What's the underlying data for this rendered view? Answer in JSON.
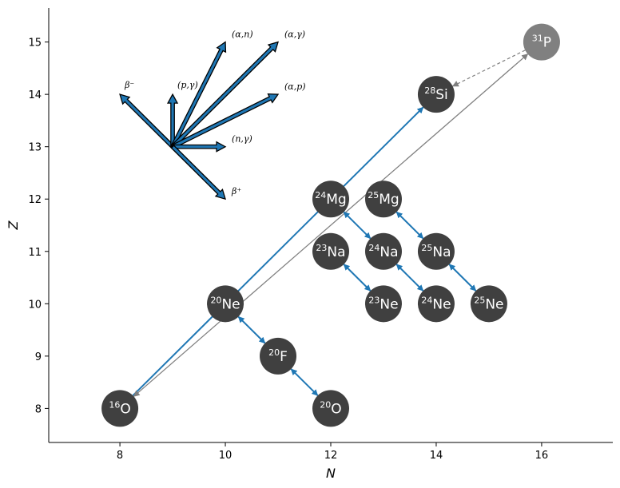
{
  "axes": {
    "xlabel": "N",
    "ylabel": "Z",
    "xlim": [
      6.65,
      17.35
    ],
    "ylim": [
      7.35,
      15.65
    ],
    "xticks": [
      "8",
      "10",
      "12",
      "14",
      "16"
    ],
    "yticks": [
      "8",
      "9",
      "10",
      "11",
      "12",
      "13",
      "14",
      "15"
    ]
  },
  "colors": {
    "node": "#404040",
    "node_unstable": "#808080",
    "transition": "#1f77b4",
    "gray_arrow": "#7f7f7f",
    "legend_arrow_fill": "#1f77b4"
  },
  "chart_data": {
    "type": "diagram",
    "nuclides": [
      {
        "id": "O16",
        "mass": "16",
        "symbol": "O",
        "n": 8,
        "z": 8,
        "style": "dark"
      },
      {
        "id": "Ne20",
        "mass": "20",
        "symbol": "Ne",
        "n": 10,
        "z": 10,
        "style": "dark"
      },
      {
        "id": "F20",
        "mass": "20",
        "symbol": "F",
        "n": 11,
        "z": 9,
        "style": "dark"
      },
      {
        "id": "O20",
        "mass": "20",
        "symbol": "O",
        "n": 12,
        "z": 8,
        "style": "dark"
      },
      {
        "id": "Mg24",
        "mass": "24",
        "symbol": "Mg",
        "n": 12,
        "z": 12,
        "style": "dark"
      },
      {
        "id": "Mg25",
        "mass": "25",
        "symbol": "Mg",
        "n": 13,
        "z": 12,
        "style": "dark"
      },
      {
        "id": "Na23",
        "mass": "23",
        "symbol": "Na",
        "n": 12,
        "z": 11,
        "style": "dark"
      },
      {
        "id": "Na24",
        "mass": "24",
        "symbol": "Na",
        "n": 13,
        "z": 11,
        "style": "dark"
      },
      {
        "id": "Na25",
        "mass": "25",
        "symbol": "Na",
        "n": 14,
        "z": 11,
        "style": "dark"
      },
      {
        "id": "Ne23",
        "mass": "23",
        "symbol": "Ne",
        "n": 13,
        "z": 10,
        "style": "dark"
      },
      {
        "id": "Ne24",
        "mass": "24",
        "symbol": "Ne",
        "n": 14,
        "z": 10,
        "style": "dark"
      },
      {
        "id": "Ne25",
        "mass": "25",
        "symbol": "Ne",
        "n": 15,
        "z": 10,
        "style": "dark"
      },
      {
        "id": "Si28",
        "mass": "28",
        "symbol": "Si",
        "n": 14,
        "z": 14,
        "style": "dark"
      },
      {
        "id": "P31",
        "mass": "31",
        "symbol": "P",
        "n": 16,
        "z": 15,
        "style": "light"
      }
    ],
    "links": [
      {
        "from": "O16",
        "to": "Si28",
        "kind": "blue-one-way"
      },
      {
        "from": "O16",
        "to": "P31",
        "kind": "gray-both"
      },
      {
        "from": "P31",
        "to": "Si28",
        "kind": "gray-dashed"
      },
      {
        "from": "Ne20",
        "to": "F20",
        "kind": "blue-both"
      },
      {
        "from": "F20",
        "to": "O20",
        "kind": "blue-both"
      },
      {
        "from": "Mg24",
        "to": "Na24",
        "kind": "blue-both"
      },
      {
        "from": "Na23",
        "to": "Ne23",
        "kind": "blue-both"
      },
      {
        "from": "Mg25",
        "to": "Na25",
        "kind": "blue-both"
      },
      {
        "from": "Na24",
        "to": "Ne24",
        "kind": "blue-both"
      },
      {
        "from": "Na25",
        "to": "Ne25",
        "kind": "blue-both"
      }
    ],
    "legend": {
      "origin": {
        "n": 9,
        "z": 13
      },
      "arrows": [
        {
          "label": "β⁻",
          "to_n": 8,
          "to_z": 14
        },
        {
          "label": "(p,γ)",
          "to_n": 9,
          "to_z": 14
        },
        {
          "label": "(α,n)",
          "to_n": 10,
          "to_z": 15
        },
        {
          "label": "(α,γ)",
          "to_n": 11,
          "to_z": 15
        },
        {
          "label": "(α,p)",
          "to_n": 11,
          "to_z": 14
        },
        {
          "label": "(n,γ)",
          "to_n": 10,
          "to_z": 13
        },
        {
          "label": "β⁺",
          "to_n": 10,
          "to_z": 12
        }
      ]
    }
  }
}
